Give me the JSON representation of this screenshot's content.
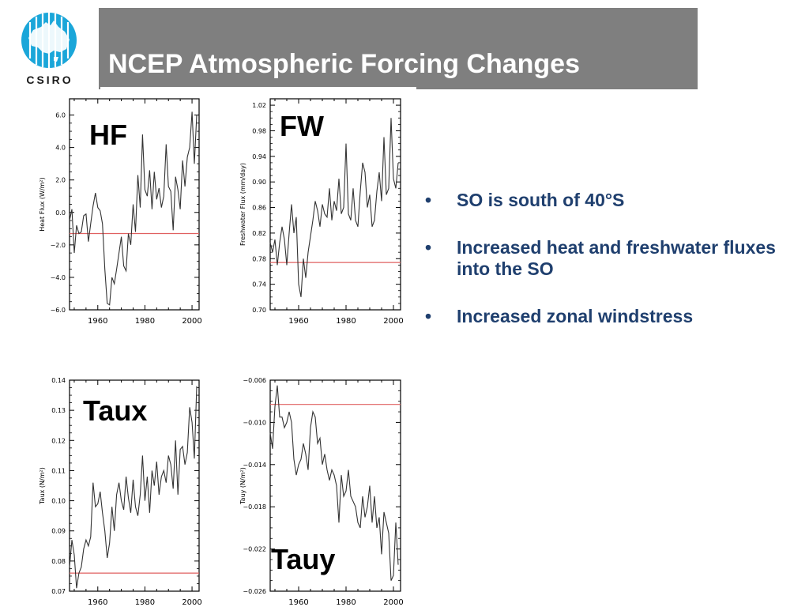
{
  "header": {
    "title": "NCEP Atmospheric Forcing Changes",
    "logo_text": "CSIRO",
    "bar_color": "#7f7f7f",
    "logo_color": "#1aa6d9"
  },
  "bullets": [
    {
      "marker": "•",
      "text": "SO is south of 40°S"
    },
    {
      "marker": "•",
      "text": "Increased heat and freshwater fluxes into the SO"
    },
    {
      "marker": "•",
      "text": "Increased zonal windstress"
    }
  ],
  "bullet_color": "#1f3f6e",
  "chart_data": [
    {
      "type": "line",
      "panel_label": "HF",
      "ylabel": "Heat Flux (W/m²)",
      "xlim": [
        1948,
        2003
      ],
      "ylim": [
        -6.0,
        7.0
      ],
      "yticks": [
        -6.0,
        -4.0,
        -2.0,
        0.0,
        2.0,
        4.0,
        6.0
      ],
      "ytick_labels": [
        "−6.0",
        "−4.0",
        "−2.0",
        "0.0",
        "2.0",
        "4.0",
        "6.0"
      ],
      "xticks": [
        1960,
        1980,
        2000
      ],
      "reference_line": -1.3,
      "reference_color": "#e06060",
      "x": [
        1948,
        1949,
        1950,
        1951,
        1952,
        1953,
        1954,
        1955,
        1956,
        1957,
        1958,
        1959,
        1960,
        1961,
        1962,
        1963,
        1964,
        1965,
        1966,
        1967,
        1968,
        1969,
        1970,
        1971,
        1972,
        1973,
        1974,
        1975,
        1976,
        1977,
        1978,
        1979,
        1980,
        1981,
        1982,
        1983,
        1984,
        1985,
        1986,
        1987,
        1988,
        1989,
        1990,
        1991,
        1992,
        1993,
        1994,
        1995,
        1996,
        1997,
        1998,
        1999,
        2000,
        2001,
        2002
      ],
      "values": [
        -0.5,
        0.2,
        -2.5,
        -0.8,
        -1.3,
        -1.2,
        -0.2,
        -0.1,
        -1.8,
        -0.7,
        0.4,
        1.2,
        0.3,
        0.1,
        -0.7,
        -3.5,
        -5.6,
        -5.7,
        -4.0,
        -4.4,
        -3.5,
        -2.5,
        -1.5,
        -3.3,
        -3.6,
        -1.3,
        -2.0,
        0.5,
        -1.2,
        2.3,
        0.3,
        4.8,
        1.4,
        1.0,
        2.6,
        0.2,
        2.5,
        0.8,
        1.5,
        0.3,
        1.0,
        4.2,
        1.6,
        1.3,
        -1.1,
        2.2,
        1.4,
        0.2,
        3.2,
        1.6,
        3.4,
        4.0,
        6.2,
        3.0,
        6.0
      ]
    },
    {
      "type": "line",
      "panel_label": "FW",
      "ylabel": "Freshwater Flux (mm/day)",
      "xlim": [
        1948,
        2003
      ],
      "ylim": [
        0.7,
        1.03
      ],
      "yticks": [
        0.7,
        0.74,
        0.78,
        0.82,
        0.86,
        0.9,
        0.94,
        0.98,
        1.02
      ],
      "ytick_labels": [
        "0.70",
        "0.74",
        "0.78",
        "0.82",
        "0.86",
        "0.90",
        "0.94",
        "0.98",
        "1.02"
      ],
      "xticks": [
        1960,
        1980,
        2000
      ],
      "reference_line": 0.774,
      "reference_color": "#e06060",
      "x": [
        1948,
        1949,
        1950,
        1951,
        1952,
        1953,
        1954,
        1955,
        1956,
        1957,
        1958,
        1959,
        1960,
        1961,
        1962,
        1963,
        1964,
        1965,
        1966,
        1967,
        1968,
        1969,
        1970,
        1971,
        1972,
        1973,
        1974,
        1975,
        1976,
        1977,
        1978,
        1979,
        1980,
        1981,
        1982,
        1983,
        1984,
        1985,
        1986,
        1987,
        1988,
        1989,
        1990,
        1991,
        1992,
        1993,
        1994,
        1995,
        1996,
        1997,
        1998,
        1999,
        2000,
        2001,
        2002
      ],
      "values": [
        0.805,
        0.79,
        0.81,
        0.77,
        0.805,
        0.83,
        0.81,
        0.77,
        0.82,
        0.865,
        0.82,
        0.845,
        0.74,
        0.72,
        0.78,
        0.75,
        0.79,
        0.815,
        0.84,
        0.87,
        0.855,
        0.83,
        0.865,
        0.85,
        0.845,
        0.89,
        0.84,
        0.87,
        0.855,
        0.905,
        0.85,
        0.86,
        0.96,
        0.85,
        0.84,
        0.89,
        0.84,
        0.83,
        0.885,
        0.93,
        0.915,
        0.86,
        0.88,
        0.83,
        0.84,
        0.885,
        0.915,
        0.87,
        0.97,
        0.88,
        0.89,
        1.0,
        0.905,
        0.89,
        0.93
      ]
    },
    {
      "type": "line",
      "panel_label": "Taux",
      "ylabel": "Taux (N/m²)",
      "xlim": [
        1948,
        2003
      ],
      "ylim": [
        0.07,
        0.14
      ],
      "yticks": [
        0.07,
        0.08,
        0.09,
        0.1,
        0.11,
        0.12,
        0.13,
        0.14
      ],
      "ytick_labels": [
        "0.07",
        "0.08",
        "0.09",
        "0.10",
        "0.11",
        "0.12",
        "0.13",
        "0.14"
      ],
      "xticks": [
        1960,
        1980,
        2000
      ],
      "reference_line": 0.076,
      "reference_color": "#e06060",
      "x": [
        1948,
        1949,
        1950,
        1951,
        1952,
        1953,
        1954,
        1955,
        1956,
        1957,
        1958,
        1959,
        1960,
        1961,
        1962,
        1963,
        1964,
        1965,
        1966,
        1967,
        1968,
        1969,
        1970,
        1971,
        1972,
        1973,
        1974,
        1975,
        1976,
        1977,
        1978,
        1979,
        1980,
        1981,
        1982,
        1983,
        1984,
        1985,
        1986,
        1987,
        1988,
        1989,
        1990,
        1991,
        1992,
        1993,
        1994,
        1995,
        1996,
        1997,
        1998,
        1999,
        2000,
        2001,
        2002
      ],
      "values": [
        0.078,
        0.087,
        0.082,
        0.071,
        0.076,
        0.078,
        0.084,
        0.087,
        0.085,
        0.088,
        0.106,
        0.098,
        0.099,
        0.103,
        0.096,
        0.09,
        0.081,
        0.086,
        0.098,
        0.09,
        0.102,
        0.106,
        0.1,
        0.097,
        0.108,
        0.101,
        0.096,
        0.107,
        0.098,
        0.095,
        0.102,
        0.115,
        0.1,
        0.108,
        0.096,
        0.11,
        0.105,
        0.113,
        0.102,
        0.108,
        0.11,
        0.106,
        0.115,
        0.112,
        0.104,
        0.12,
        0.102,
        0.117,
        0.118,
        0.112,
        0.116,
        0.131,
        0.126,
        0.114,
        0.138
      ]
    },
    {
      "type": "line",
      "panel_label": "Tauy",
      "ylabel": "Tauy (N/m²)",
      "xlim": [
        1948,
        2003
      ],
      "ylim": [
        -0.026,
        -0.006
      ],
      "yticks": [
        -0.026,
        -0.022,
        -0.018,
        -0.014,
        -0.01,
        -0.006
      ],
      "ytick_labels": [
        "−0.026",
        "−0.022",
        "−0.018",
        "−0.014",
        "−0.010",
        "−0.006"
      ],
      "xticks": [
        1960,
        1980,
        2000
      ],
      "reference_line": -0.0083,
      "reference_color": "#e06060",
      "x": [
        1948,
        1949,
        1950,
        1951,
        1952,
        1953,
        1954,
        1955,
        1956,
        1957,
        1958,
        1959,
        1960,
        1961,
        1962,
        1963,
        1964,
        1965,
        1966,
        1967,
        1968,
        1969,
        1970,
        1971,
        1972,
        1973,
        1974,
        1975,
        1976,
        1977,
        1978,
        1979,
        1980,
        1981,
        1982,
        1983,
        1984,
        1985,
        1986,
        1987,
        1988,
        1989,
        1990,
        1991,
        1992,
        1993,
        1994,
        1995,
        1996,
        1997,
        1998,
        1999,
        2000,
        2001,
        2002
      ],
      "values": [
        -0.011,
        -0.0125,
        -0.0085,
        -0.0065,
        -0.0095,
        -0.0095,
        -0.0105,
        -0.01,
        -0.009,
        -0.01,
        -0.0135,
        -0.015,
        -0.014,
        -0.0135,
        -0.012,
        -0.013,
        -0.0145,
        -0.0105,
        -0.009,
        -0.0095,
        -0.012,
        -0.0115,
        -0.014,
        -0.013,
        -0.0145,
        -0.0155,
        -0.0145,
        -0.015,
        -0.016,
        -0.0195,
        -0.015,
        -0.017,
        -0.0165,
        -0.0145,
        -0.017,
        -0.0175,
        -0.018,
        -0.0195,
        -0.02,
        -0.017,
        -0.019,
        -0.018,
        -0.016,
        -0.0195,
        -0.017,
        -0.02,
        -0.019,
        -0.0225,
        -0.0185,
        -0.0195,
        -0.0205,
        -0.025,
        -0.0245,
        -0.0195,
        -0.0235
      ]
    }
  ]
}
